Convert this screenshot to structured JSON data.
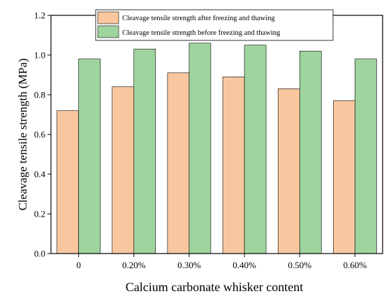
{
  "chart_data": {
    "type": "bar",
    "categories": [
      "0",
      "0.20%",
      "0.30%",
      "0.40%",
      "0.50%",
      "0.60%"
    ],
    "series": [
      {
        "name": "Cleavage tensile strength after freezing and thawing",
        "color": "#F9C79F",
        "values": [
          0.72,
          0.84,
          0.91,
          0.89,
          0.83,
          0.77
        ]
      },
      {
        "name": "Cleavage tensile strength before freezing and thawing",
        "color": "#9FD49F",
        "values": [
          0.98,
          1.03,
          1.06,
          1.05,
          1.02,
          0.98
        ]
      }
    ],
    "xlabel": "Calcium carbonate whisker content",
    "ylabel": "Cleavage tensile strength (MPa)",
    "ylim": [
      0,
      1.2
    ],
    "yticks": [
      "0.0",
      "0.2",
      "0.4",
      "0.6",
      "0.8",
      "1.0",
      "1.2"
    ],
    "grid": false,
    "legend_position": "top-right"
  }
}
